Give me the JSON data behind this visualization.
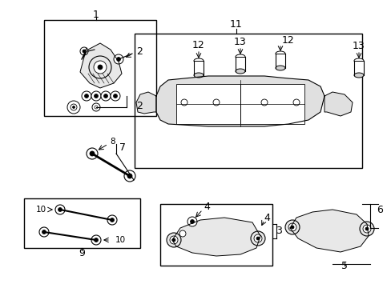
{
  "bg_color": "#ffffff",
  "line_color": "#000000",
  "fig_width": 4.89,
  "fig_height": 3.6,
  "dpi": 100,
  "label_fontsize": 9,
  "small_fontsize": 7.5
}
